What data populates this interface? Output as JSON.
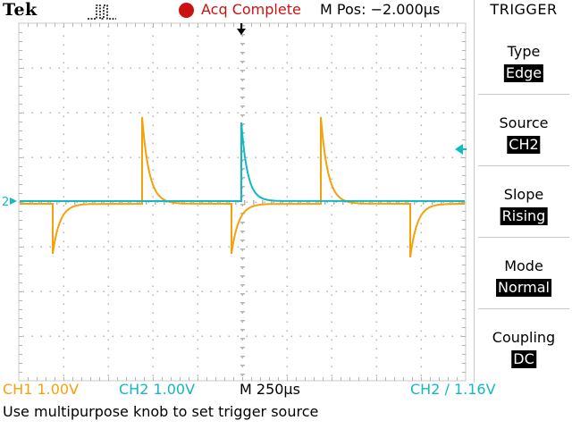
{
  "brand": "Tek",
  "status": {
    "trigger_icon": "trigger-pulse-icon",
    "acq_icon": "acquisition-dot-icon",
    "acq_text": "Acq Complete",
    "mpos_text": "M Pos: −2.000µs"
  },
  "menu": {
    "title": "TRIGGER",
    "items": [
      {
        "label": "Type",
        "value": "Edge"
      },
      {
        "label": "Source",
        "value": "CH2"
      },
      {
        "label": "Slope",
        "value": "Rising"
      },
      {
        "label": "Mode",
        "value": "Normal"
      },
      {
        "label": "Coupling",
        "value": "DC"
      }
    ]
  },
  "readouts": {
    "ch1": "CH1  1.00V",
    "ch2": "CH2  1.00V",
    "timebase": "M 250µs",
    "trigger": "CH2 ∕ 1.16V"
  },
  "help_text": "Use multipurpose knob to set trigger source",
  "markers": {
    "ch2_marker": "2"
  },
  "colors": {
    "ch1": "#f5a20a",
    "ch2": "#12b8c4",
    "acq": "#cc1111"
  }
}
